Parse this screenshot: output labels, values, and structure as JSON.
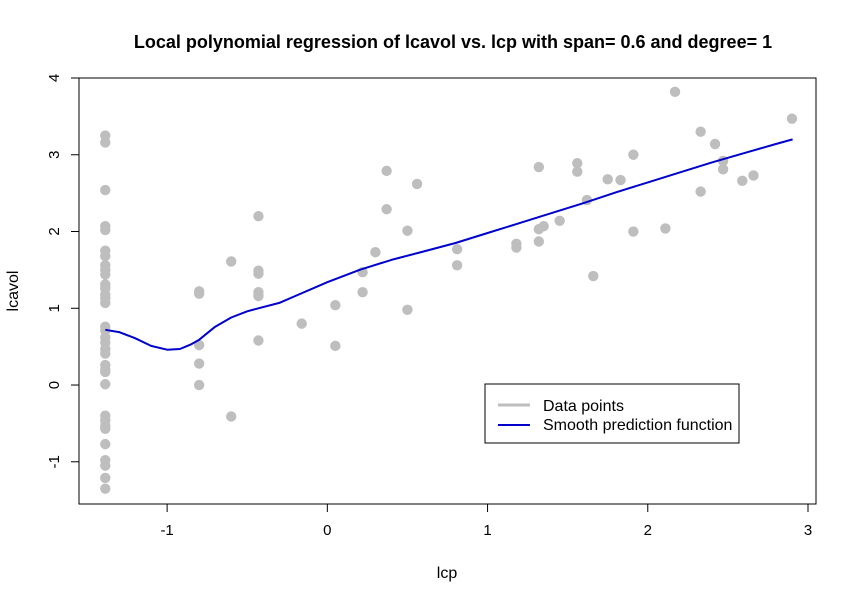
{
  "chart_data": {
    "type": "scatter",
    "title": "Local polynomial regression of lcavol vs. lcp with span= 0.6 and degree= 1",
    "xlabel": "lcp",
    "ylabel": "lcavol",
    "xlim": [
      -1.55,
      3.05
    ],
    "ylim": [
      -1.55,
      4.0
    ],
    "xticks": [
      -1,
      0,
      1,
      2,
      3
    ],
    "yticks": [
      -1,
      0,
      1,
      2,
      3,
      4
    ],
    "grid": false,
    "legend": {
      "position": "bottom-right",
      "entries": [
        {
          "label": "Data points",
          "color": "#bebebe"
        },
        {
          "label": "Smooth prediction function",
          "color": "#0000cd"
        }
      ]
    },
    "series": [
      {
        "name": "Data points",
        "type": "scatter",
        "color": "#bebebe",
        "points": [
          [
            -1.386,
            3.25
          ],
          [
            -1.386,
            3.16
          ],
          [
            -1.386,
            2.54
          ],
          [
            -1.386,
            2.07
          ],
          [
            -1.386,
            2.02
          ],
          [
            -1.386,
            1.75
          ],
          [
            -1.386,
            1.68
          ],
          [
            -1.386,
            1.56
          ],
          [
            -1.386,
            1.5
          ],
          [
            -1.386,
            1.44
          ],
          [
            -1.386,
            1.31
          ],
          [
            -1.386,
            1.26
          ],
          [
            -1.386,
            1.18
          ],
          [
            -1.386,
            1.13
          ],
          [
            -1.386,
            1.07
          ],
          [
            -1.386,
            0.76
          ],
          [
            -1.386,
            0.71
          ],
          [
            -1.386,
            0.62
          ],
          [
            -1.386,
            0.55
          ],
          [
            -1.386,
            0.47
          ],
          [
            -1.386,
            0.41
          ],
          [
            -1.386,
            0.26
          ],
          [
            -1.386,
            0.2
          ],
          [
            -1.386,
            0.17
          ],
          [
            -1.386,
            0.01
          ],
          [
            -1.386,
            -0.4
          ],
          [
            -1.386,
            -0.46
          ],
          [
            -1.386,
            -0.53
          ],
          [
            -1.386,
            -0.57
          ],
          [
            -1.386,
            -0.77
          ],
          [
            -1.386,
            -0.98
          ],
          [
            -1.386,
            -1.05
          ],
          [
            -1.386,
            -1.21
          ],
          [
            -1.386,
            -1.35
          ],
          [
            -0.8,
            1.22
          ],
          [
            -0.8,
            1.19
          ],
          [
            -0.8,
            0.52
          ],
          [
            -0.8,
            0.28
          ],
          [
            -0.8,
            0.0
          ],
          [
            -0.6,
            1.61
          ],
          [
            -0.6,
            -0.41
          ],
          [
            -0.43,
            2.2
          ],
          [
            -0.43,
            1.49
          ],
          [
            -0.43,
            1.45
          ],
          [
            -0.43,
            1.21
          ],
          [
            -0.43,
            1.16
          ],
          [
            -0.43,
            0.58
          ],
          [
            -0.16,
            0.8
          ],
          [
            0.05,
            1.04
          ],
          [
            0.05,
            0.51
          ],
          [
            0.22,
            1.47
          ],
          [
            0.22,
            1.21
          ],
          [
            0.3,
            1.73
          ],
          [
            0.37,
            2.79
          ],
          [
            0.37,
            2.29
          ],
          [
            0.5,
            2.01
          ],
          [
            0.5,
            0.98
          ],
          [
            0.56,
            2.62
          ],
          [
            0.81,
            1.77
          ],
          [
            0.81,
            1.56
          ],
          [
            1.18,
            1.84
          ],
          [
            1.18,
            1.79
          ],
          [
            1.32,
            2.84
          ],
          [
            1.32,
            2.03
          ],
          [
            1.32,
            1.87
          ],
          [
            1.35,
            2.07
          ],
          [
            1.45,
            2.14
          ],
          [
            1.56,
            2.89
          ],
          [
            1.56,
            2.78
          ],
          [
            1.62,
            2.41
          ],
          [
            1.66,
            1.42
          ],
          [
            1.75,
            2.68
          ],
          [
            1.83,
            2.67
          ],
          [
            1.91,
            3.0
          ],
          [
            1.91,
            2.0
          ],
          [
            2.11,
            2.04
          ],
          [
            2.17,
            3.82
          ],
          [
            2.33,
            3.3
          ],
          [
            2.33,
            2.52
          ],
          [
            2.42,
            3.14
          ],
          [
            2.47,
            2.92
          ],
          [
            2.47,
            2.81
          ],
          [
            2.59,
            2.66
          ],
          [
            2.66,
            2.73
          ],
          [
            2.9,
            3.47
          ]
        ]
      },
      {
        "name": "Smooth prediction function",
        "type": "line",
        "color": "#0000cd",
        "points": [
          [
            -1.386,
            0.72
          ],
          [
            -1.3,
            0.69
          ],
          [
            -1.2,
            0.61
          ],
          [
            -1.1,
            0.51
          ],
          [
            -1.0,
            0.46
          ],
          [
            -0.92,
            0.47
          ],
          [
            -0.85,
            0.53
          ],
          [
            -0.8,
            0.59
          ],
          [
            -0.7,
            0.76
          ],
          [
            -0.6,
            0.88
          ],
          [
            -0.5,
            0.96
          ],
          [
            -0.43,
            1.0
          ],
          [
            -0.3,
            1.07
          ],
          [
            -0.2,
            1.16
          ],
          [
            0.0,
            1.34
          ],
          [
            0.2,
            1.5
          ],
          [
            0.4,
            1.63
          ],
          [
            0.6,
            1.74
          ],
          [
            0.8,
            1.85
          ],
          [
            1.0,
            1.98
          ],
          [
            1.2,
            2.11
          ],
          [
            1.4,
            2.24
          ],
          [
            1.6,
            2.37
          ],
          [
            1.8,
            2.51
          ],
          [
            2.0,
            2.64
          ],
          [
            2.2,
            2.77
          ],
          [
            2.4,
            2.9
          ],
          [
            2.6,
            3.02
          ],
          [
            2.8,
            3.14
          ],
          [
            2.904,
            3.2
          ]
        ]
      }
    ]
  }
}
